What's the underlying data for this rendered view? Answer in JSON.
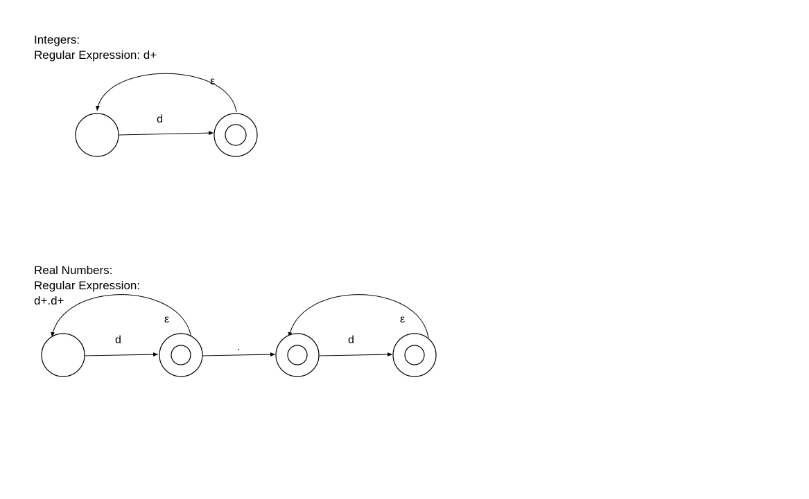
{
  "integers": {
    "title": "Integers:",
    "regex_line": "Regular Expression: d+",
    "transitions": {
      "start_to_accept": "d",
      "loop_back": "ε"
    }
  },
  "reals": {
    "title": "Real Numbers:",
    "regex_caption": "Regular Expression:",
    "regex_value": "d+.d+",
    "transitions": {
      "s0_to_s1": "d",
      "s1_loop": "ε",
      "s1_to_s2": ".",
      "s2_to_s3": "d",
      "s3_loop": "ε"
    }
  }
}
